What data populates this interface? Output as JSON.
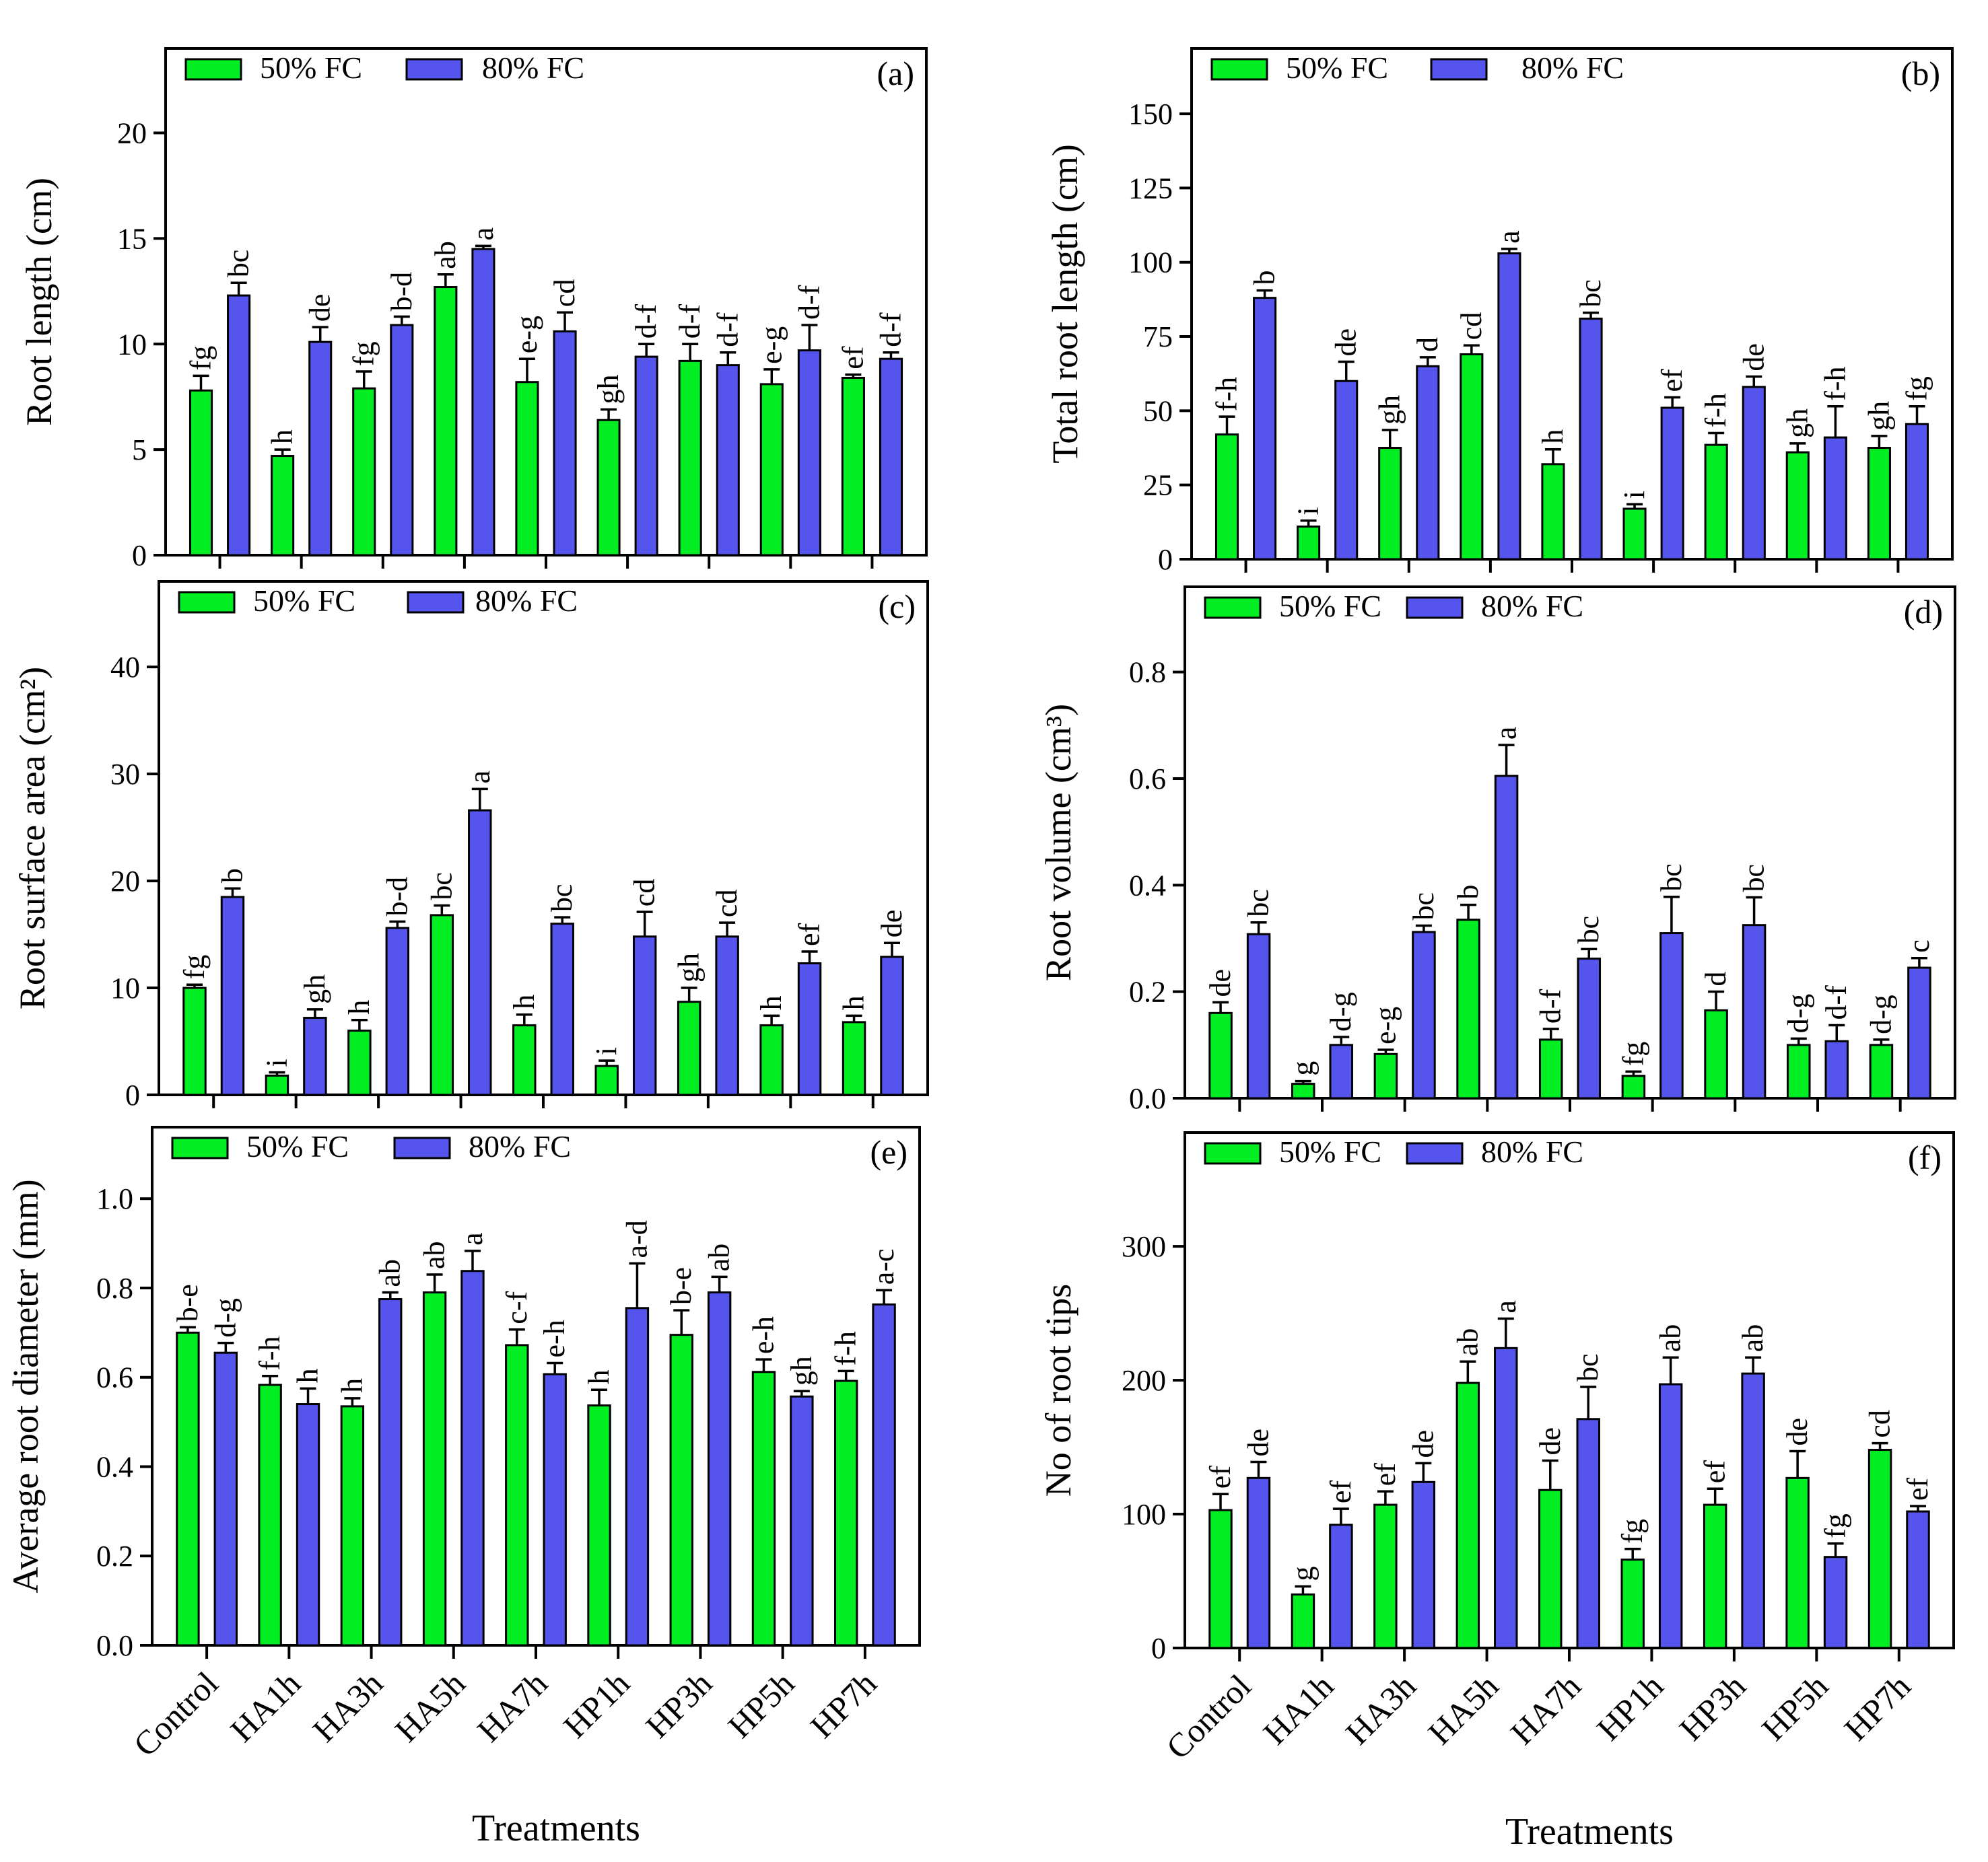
{
  "figure": {
    "x_title": "Treatments",
    "treatments": [
      "Control",
      "HA1h",
      "HA3h",
      "HA5h",
      "HA7h",
      "HP1h",
      "HP3h",
      "HP5h",
      "HP7h"
    ],
    "legend": [
      "50% FC",
      "80% FC"
    ],
    "colors": {
      "fc50": "#00ee22",
      "fc80": "#5555ee"
    }
  },
  "chart_data": [
    {
      "type": "bar",
      "panel": "(a)",
      "ylabel": "Root length (cm)",
      "ylim": [
        0,
        24
      ],
      "yticks": [
        "0",
        "5",
        "10",
        "15",
        "20"
      ],
      "ytick_values": [
        0,
        5,
        10,
        15,
        20
      ],
      "categories": [
        "Control",
        "HA1h",
        "HA3h",
        "HA5h",
        "HA7h",
        "HP1h",
        "HP3h",
        "HP5h",
        "HP7h"
      ],
      "series": [
        {
          "name": "50% FC",
          "values": [
            7.8,
            4.7,
            7.9,
            12.7,
            8.2,
            6.4,
            9.2,
            8.1,
            8.4
          ],
          "errors": [
            0.7,
            0.3,
            0.8,
            0.6,
            1.1,
            0.5,
            0.8,
            0.7,
            0.15
          ],
          "labels": [
            "fg",
            "h",
            "fg",
            "ab",
            "e-g",
            "gh",
            "d-f",
            "e-g",
            "ef"
          ]
        },
        {
          "name": "80% FC",
          "values": [
            12.3,
            10.1,
            10.9,
            14.5,
            10.6,
            9.4,
            9.0,
            9.7,
            9.3
          ],
          "errors": [
            0.6,
            0.7,
            0.4,
            0.15,
            0.9,
            0.6,
            0.6,
            1.2,
            0.3
          ],
          "labels": [
            "bc",
            "de",
            "b-d",
            "a",
            "cd",
            "d-f",
            "d-f",
            "d-f",
            "d-f"
          ]
        }
      ]
    },
    {
      "type": "bar",
      "panel": "(b)",
      "ylabel": "Total root length  (cm)",
      "ylim": [
        0,
        172
      ],
      "yticks": [
        "0",
        "25",
        "50",
        "75",
        "100",
        "125",
        "150"
      ],
      "ytick_values": [
        0,
        25,
        50,
        75,
        100,
        125,
        150
      ],
      "categories": [
        "Control",
        "HA1h",
        "HA3h",
        "HA5h",
        "HA7h",
        "HP1h",
        "HP3h",
        "HP5h",
        "HP7h"
      ],
      "series": [
        {
          "name": "50% FC",
          "values": [
            42,
            11,
            37.5,
            69,
            32,
            17,
            38.5,
            36,
            37.5
          ],
          "errors": [
            6,
            2,
            6,
            3,
            5,
            1.5,
            4,
            3,
            4
          ],
          "labels": [
            "f-h",
            "i",
            "gh",
            "cd",
            "h",
            "i",
            "f-h",
            "gh",
            "gh"
          ]
        },
        {
          "name": "80% FC",
          "values": [
            88,
            60,
            65,
            103,
            81,
            51,
            58,
            41,
            45.5
          ],
          "errors": [
            2.5,
            6.5,
            3,
            1.5,
            2,
            3.5,
            3.5,
            10.5,
            6
          ],
          "labels": [
            "b",
            "de",
            "d",
            "a",
            "bc",
            "ef",
            "de",
            "f-h",
            "fg"
          ]
        }
      ]
    },
    {
      "type": "bar",
      "panel": "(c)",
      "ylabel": "Root surface area (cm²)",
      "ylim": [
        0,
        48
      ],
      "yticks": [
        "0",
        "10",
        "20",
        "30",
        "40"
      ],
      "ytick_values": [
        0,
        10,
        20,
        30,
        40
      ],
      "categories": [
        "Control",
        "HA1h",
        "HA3h",
        "HA5h",
        "HA7h",
        "HP1h",
        "HP3h",
        "HP5h",
        "HP7h"
      ],
      "series": [
        {
          "name": "50% FC",
          "values": [
            10,
            1.8,
            6,
            16.8,
            6.5,
            2.7,
            8.7,
            6.5,
            6.8
          ],
          "errors": [
            0.3,
            0.3,
            1,
            0.9,
            1,
            0.5,
            1.3,
            0.9,
            0.6
          ],
          "labels": [
            "fg",
            "i",
            "h",
            "bc",
            "h",
            "i",
            "gh",
            "h",
            "h"
          ]
        },
        {
          "name": "80% FC",
          "values": [
            18.5,
            7.2,
            15.6,
            26.6,
            16,
            14.8,
            14.8,
            12.3,
            12.9
          ],
          "errors": [
            0.8,
            0.8,
            0.6,
            2,
            0.6,
            2.3,
            1.3,
            1.1,
            1.3
          ],
          "labels": [
            "b",
            "gh",
            "b-d",
            "a",
            "bc",
            "cd",
            "cd",
            "ef",
            "de"
          ]
        }
      ]
    },
    {
      "type": "bar",
      "panel": "(d)",
      "ylabel": "Root volume (cm³)",
      "ylim": [
        0,
        0.96
      ],
      "yticks": [
        "0.0",
        "0.2",
        "0.4",
        "0.6",
        "0.8"
      ],
      "ytick_values": [
        0,
        0.2,
        0.4,
        0.6,
        0.8
      ],
      "categories": [
        "Control",
        "HA1h",
        "HA3h",
        "HA5h",
        "HA7h",
        "HP1h",
        "HP3h",
        "HP5h",
        "HP7h"
      ],
      "series": [
        {
          "name": "50% FC",
          "values": [
            0.16,
            0.027,
            0.083,
            0.335,
            0.11,
            0.042,
            0.165,
            0.1,
            0.1
          ],
          "errors": [
            0.02,
            0.005,
            0.008,
            0.028,
            0.02,
            0.008,
            0.035,
            0.012,
            0.01
          ],
          "labels": [
            "de",
            "g",
            "e-g",
            "b",
            "d-f",
            "fg",
            "d",
            "d-g",
            "d-g"
          ]
        },
        {
          "name": "80% FC",
          "values": [
            0.308,
            0.1,
            0.312,
            0.605,
            0.262,
            0.31,
            0.325,
            0.107,
            0.245
          ],
          "errors": [
            0.022,
            0.015,
            0.012,
            0.058,
            0.018,
            0.068,
            0.052,
            0.03,
            0.018
          ],
          "labels": [
            "bc",
            "d-g",
            "bc",
            "a",
            "bc",
            "bc",
            "bc",
            "d-f",
            "c"
          ]
        }
      ]
    },
    {
      "type": "bar",
      "panel": "(e)",
      "ylabel": "Average root diameter (mm)",
      "ylim": [
        0,
        1.16
      ],
      "yticks": [
        "0.0",
        "0.2",
        "0.4",
        "0.6",
        "0.8",
        "1.0"
      ],
      "ytick_values": [
        0,
        0.2,
        0.4,
        0.6,
        0.8,
        1.0
      ],
      "categories": [
        "Control",
        "HA1h",
        "HA3h",
        "HA5h",
        "HA7h",
        "HP1h",
        "HP3h",
        "HP5h",
        "HP7h"
      ],
      "series": [
        {
          "name": "50% FC",
          "values": [
            0.7,
            0.583,
            0.535,
            0.79,
            0.672,
            0.537,
            0.695,
            0.612,
            0.592
          ],
          "errors": [
            0.012,
            0.02,
            0.018,
            0.04,
            0.035,
            0.035,
            0.055,
            0.028,
            0.022
          ],
          "labels": [
            "b-e",
            "f-h",
            "h",
            "ab",
            "c-f",
            "h",
            "b-e",
            "e-h",
            "f-h"
          ]
        },
        {
          "name": "80% FC",
          "values": [
            0.655,
            0.54,
            0.775,
            0.838,
            0.607,
            0.755,
            0.79,
            0.557,
            0.763
          ],
          "errors": [
            0.022,
            0.035,
            0.015,
            0.045,
            0.025,
            0.1,
            0.035,
            0.012,
            0.032
          ],
          "labels": [
            "d-g",
            "h",
            "ab",
            "a",
            "e-h",
            "a-d",
            "ab",
            "gh",
            "a-c"
          ]
        }
      ]
    },
    {
      "type": "bar",
      "panel": "(f)",
      "ylabel": "No of root tips",
      "ylim": [
        0,
        385
      ],
      "yticks": [
        "0",
        "100",
        "200",
        "300"
      ],
      "ytick_values": [
        0,
        100,
        200,
        300
      ],
      "categories": [
        "Control",
        "HA1h",
        "HA3h",
        "HA5h",
        "HA7h",
        "HP1h",
        "HP3h",
        "HP5h",
        "HP7h"
      ],
      "series": [
        {
          "name": "50% FC",
          "values": [
            103,
            40,
            107,
            198,
            118,
            66,
            107,
            127,
            148
          ],
          "errors": [
            12,
            6,
            10,
            16,
            22,
            8,
            12,
            20,
            5
          ],
          "labels": [
            "ef",
            "g",
            "ef",
            "ab",
            "de",
            "fg",
            "ef",
            "de",
            "cd"
          ]
        },
        {
          "name": "80% FC",
          "values": [
            127,
            92,
            124,
            224,
            171,
            197,
            205,
            68,
            102
          ],
          "errors": [
            12,
            12,
            14,
            22,
            24,
            20,
            12,
            10,
            4
          ],
          "labels": [
            "de",
            "ef",
            "de",
            "a",
            "bc",
            "ab",
            "ab",
            "fg",
            "ef"
          ]
        }
      ]
    }
  ]
}
